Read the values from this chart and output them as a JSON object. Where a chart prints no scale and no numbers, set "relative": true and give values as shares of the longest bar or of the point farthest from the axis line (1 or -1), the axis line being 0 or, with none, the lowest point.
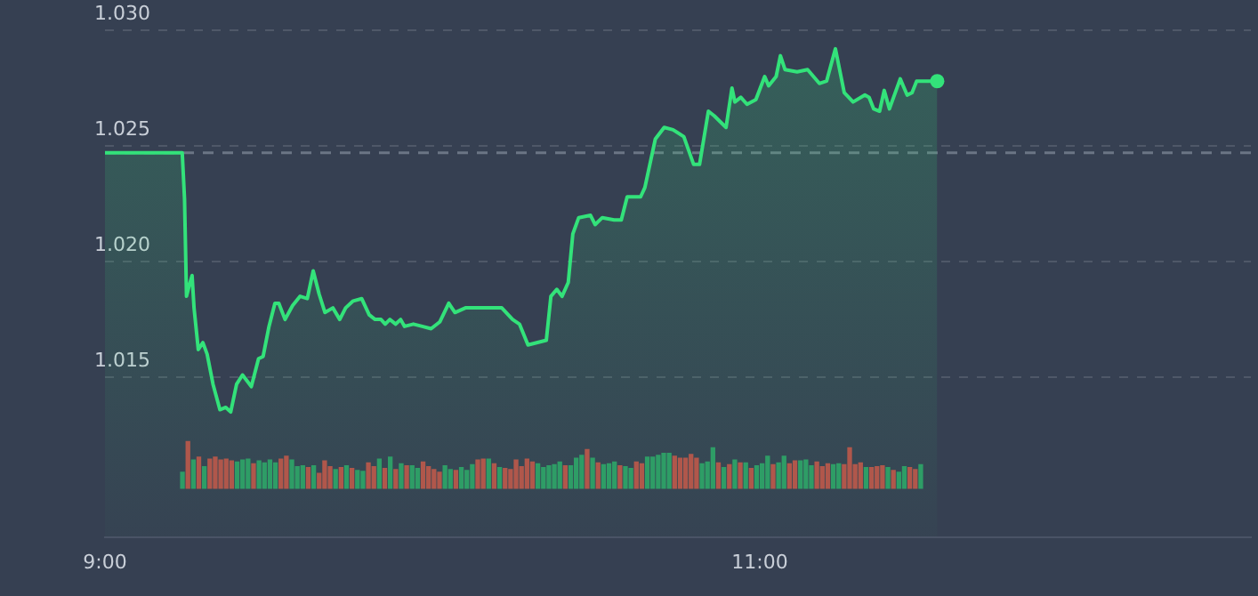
{
  "chart_data": [
    {
      "type": "area",
      "xlim": [
        9,
        12.5
      ],
      "xticks": [
        {
          "value": 9,
          "label": "9:00"
        },
        {
          "value": 11,
          "label": "11:00"
        }
      ],
      "ylim": [
        1.0081,
        1.03
      ],
      "yticks": [
        1.015,
        {
          "value": 1.02,
          "label": "1.020"
        },
        1.025,
        {
          "value": 1.03,
          "label": "1.030"
        }
      ],
      "grid": "y",
      "legend": false,
      "ref_lines": [
        {
          "axis": "y",
          "value": 1.0247,
          "color": "#6b7585",
          "line_style": "dashed"
        }
      ],
      "series": [
        {
          "type": "area",
          "color": "#33e27a",
          "x": [
            9,
            9.236,
            9.243,
            9.249,
            9.258,
            9.266,
            9.272,
            9.285,
            9.299,
            9.312,
            9.33,
            9.351,
            9.369,
            9.384,
            9.402,
            9.42,
            9.447,
            9.469,
            9.483,
            9.501,
            9.519,
            9.531,
            9.55,
            9.573,
            9.596,
            9.618,
            9.636,
            9.654,
            9.672,
            9.696,
            9.717,
            9.735,
            9.758,
            9.784,
            9.807,
            9.825,
            9.843,
            9.856,
            9.87,
            9.888,
            9.903,
            9.915,
            9.942,
            9.969,
            9.996,
            10.023,
            10.05,
            10.069,
            10.101,
            10.158,
            10.212,
            10.245,
            10.266,
            10.292,
            10.348,
            10.362,
            10.38,
            10.396,
            10.415,
            10.429,
            10.447,
            10.483,
            10.497,
            10.519,
            10.555,
            10.577,
            10.595,
            10.636,
            10.649,
            10.681,
            10.708,
            10.735,
            10.768,
            10.798,
            10.816,
            10.843,
            10.861,
            10.897,
            10.915,
            10.924,
            10.942,
            10.961,
            10.988,
            11.015,
            11.027,
            11.05,
            11.063,
            11.077,
            11.114,
            11.146,
            11.182,
            11.204,
            11.231,
            11.258,
            11.285,
            11.321,
            11.334,
            11.348,
            11.366,
            11.38,
            11.396,
            11.429,
            11.45,
            11.465,
            11.479,
            11.542
          ],
          "values": [
            1.0247,
            1.0247,
            1.0227,
            1.0185,
            1.019,
            1.0194,
            1.018,
            1.0162,
            1.0165,
            1.016,
            1.0147,
            1.0136,
            1.0137,
            1.0135,
            1.0147,
            1.0151,
            1.0146,
            1.0158,
            1.0159,
            1.0172,
            1.0182,
            1.0182,
            1.0175,
            1.0181,
            1.0185,
            1.0184,
            1.0196,
            1.0186,
            1.0178,
            1.018,
            1.0175,
            1.018,
            1.0183,
            1.0184,
            1.0177,
            1.0175,
            1.0175,
            1.0173,
            1.0175,
            1.0173,
            1.0175,
            1.0172,
            1.0173,
            1.0172,
            1.0171,
            1.0174,
            1.0182,
            1.0178,
            1.018,
            1.018,
            1.018,
            1.0175,
            1.0173,
            1.0164,
            1.0166,
            1.0185,
            1.0188,
            1.0185,
            1.0191,
            1.0212,
            1.0219,
            1.022,
            1.0216,
            1.0219,
            1.0218,
            1.0218,
            1.0228,
            1.0228,
            1.0232,
            1.0253,
            1.0258,
            1.0257,
            1.0254,
            1.0242,
            1.0242,
            1.0265,
            1.0263,
            1.0258,
            1.0275,
            1.0269,
            1.0271,
            1.0268,
            1.027,
            1.028,
            1.0276,
            1.028,
            1.0289,
            1.0283,
            1.0282,
            1.0283,
            1.0277,
            1.0278,
            1.0292,
            1.0273,
            1.0269,
            1.0272,
            1.0271,
            1.0266,
            1.0265,
            1.0274,
            1.0266,
            1.0279,
            1.0272,
            1.0273,
            1.0278,
            1.0278
          ]
        }
      ]
    },
    {
      "type": "bar",
      "relative": true,
      "categories": [
        null,
        null,
        null,
        null,
        null,
        null,
        null,
        null,
        null,
        null,
        null,
        null,
        null,
        null,
        null,
        null,
        null,
        null,
        null,
        null,
        null,
        null,
        null,
        null,
        null,
        null,
        null,
        null,
        null,
        null,
        null,
        null,
        null,
        null,
        null,
        null,
        null,
        null,
        null,
        null,
        null,
        null,
        null,
        null,
        null,
        null,
        null,
        null,
        null,
        null,
        null,
        null,
        null,
        null,
        null,
        null,
        null,
        null,
        null,
        null,
        null,
        null,
        null,
        null,
        null,
        null,
        null,
        null,
        null,
        null,
        null,
        null,
        null,
        null,
        null,
        null,
        null,
        null,
        null,
        null,
        null,
        null,
        null,
        null,
        null,
        null,
        null,
        null,
        null,
        null,
        null,
        null,
        null,
        null,
        null,
        null,
        null,
        null,
        null,
        null,
        null,
        null,
        null,
        null,
        null,
        null,
        null,
        null,
        null,
        null,
        null,
        null,
        null,
        null,
        null,
        null,
        null,
        null,
        null,
        null,
        null,
        null,
        null,
        null,
        null,
        null,
        null,
        null,
        null,
        null,
        null,
        null,
        null,
        null,
        null,
        null
      ],
      "values": [
        0.35,
        1,
        0.61,
        0.67,
        0.47,
        0.63,
        0.67,
        0.61,
        0.63,
        0.59,
        0.57,
        0.61,
        0.63,
        0.53,
        0.59,
        0.55,
        0.61,
        0.55,
        0.63,
        0.69,
        0.61,
        0.47,
        0.49,
        0.45,
        0.49,
        0.33,
        0.59,
        0.47,
        0.41,
        0.45,
        0.49,
        0.43,
        0.39,
        0.37,
        0.55,
        0.47,
        0.63,
        0.43,
        0.67,
        0.41,
        0.53,
        0.49,
        0.49,
        0.43,
        0.57,
        0.47,
        0.41,
        0.35,
        0.49,
        0.41,
        0.39,
        0.45,
        0.39,
        0.51,
        0.61,
        0.63,
        0.63,
        0.53,
        0.45,
        0.43,
        0.41,
        0.61,
        0.47,
        0.63,
        0.57,
        0.53,
        0.45,
        0.49,
        0.51,
        0.57,
        0.49,
        0.49,
        0.65,
        0.71,
        0.83,
        0.65,
        0.55,
        0.51,
        0.53,
        0.57,
        0.49,
        0.47,
        0.43,
        0.57,
        0.53,
        0.67,
        0.67,
        0.71,
        0.75,
        0.75,
        0.69,
        0.65,
        0.65,
        0.73,
        0.65,
        0.53,
        0.57,
        0.87,
        0.55,
        0.45,
        0.51,
        0.61,
        0.55,
        0.55,
        0.43,
        0.49,
        0.53,
        0.69,
        0.51,
        0.55,
        0.69,
        0.53,
        0.59,
        0.59,
        0.61,
        0.49,
        0.57,
        0.47,
        0.53,
        0.51,
        0.53,
        0.51,
        0.87,
        0.51,
        0.55,
        0.45,
        0.45,
        0.47,
        0.49,
        0.45,
        0.39,
        0.35,
        0.47,
        0.45,
        0.41,
        0.51
      ],
      "colors": [
        "#2e9d66",
        "#b0574b",
        "#2e9d66",
        "#b0574b",
        "#2e9d66",
        "#b0574b",
        "#b0574b",
        "#b0574b",
        "#b0574b",
        "#b0574b",
        "#2e9d66",
        "#2e9d66",
        "#2e9d66",
        "#b0574b",
        "#2e9d66",
        "#2e9d66",
        "#2e9d66",
        "#2e9d66",
        "#b0574b",
        "#b0574b",
        "#2e9d66",
        "#2e9d66",
        "#2e9d66",
        "#b0574b",
        "#2e9d66",
        "#b0574b",
        "#b0574b",
        "#b0574b",
        "#2e9d66",
        "#b0574b",
        "#2e9d66",
        "#b0574b",
        "#2e9d66",
        "#2e9d66",
        "#b0574b",
        "#b0574b",
        "#2e9d66",
        "#b0574b",
        "#2e9d66",
        "#b0574b",
        "#2e9d66",
        "#b0574b",
        "#2e9d66",
        "#2e9d66",
        "#b0574b",
        "#b0574b",
        "#b0574b",
        "#b0574b",
        "#2e9d66",
        "#2e9d66",
        "#b0574b",
        "#2e9d66",
        "#2e9d66",
        "#2e9d66",
        "#b0574b",
        "#b0574b",
        "#2e9d66",
        "#b0574b",
        "#2e9d66",
        "#b0574b",
        "#b0574b",
        "#b0574b",
        "#b0574b",
        "#b0574b",
        "#b0574b",
        "#2e9d66",
        "#2e9d66",
        "#2e9d66",
        "#2e9d66",
        "#2e9d66",
        "#b0574b",
        "#2e9d66",
        "#2e9d66",
        "#2e9d66",
        "#b0574b",
        "#2e9d66",
        "#b0574b",
        "#2e9d66",
        "#2e9d66",
        "#2e9d66",
        "#b0574b",
        "#2e9d66",
        "#2e9d66",
        "#b0574b",
        "#b0574b",
        "#2e9d66",
        "#2e9d66",
        "#2e9d66",
        "#2e9d66",
        "#2e9d66",
        "#b0574b",
        "#b0574b",
        "#b0574b",
        "#b0574b",
        "#b0574b",
        "#2e9d66",
        "#2e9d66",
        "#2e9d66",
        "#b0574b",
        "#2e9d66",
        "#b0574b",
        "#2e9d66",
        "#b0574b",
        "#2e9d66",
        "#b0574b",
        "#2e9d66",
        "#2e9d66",
        "#2e9d66",
        "#b0574b",
        "#2e9d66",
        "#2e9d66",
        "#b0574b",
        "#b0574b",
        "#2e9d66",
        "#2e9d66",
        "#2e9d66",
        "#b0574b",
        "#b0574b",
        "#b0574b",
        "#2e9d66",
        "#2e9d66",
        "#b0574b",
        "#b0574b",
        "#b0574b",
        "#b0574b",
        "#2e9d66",
        "#b0574b",
        "#b0574b",
        "#b0574b",
        "#2e9d66",
        "#b0574b",
        "#2e9d66",
        "#2e9d66",
        "#b0574b",
        "#b0574b",
        "#2e9d66"
      ]
    }
  ]
}
